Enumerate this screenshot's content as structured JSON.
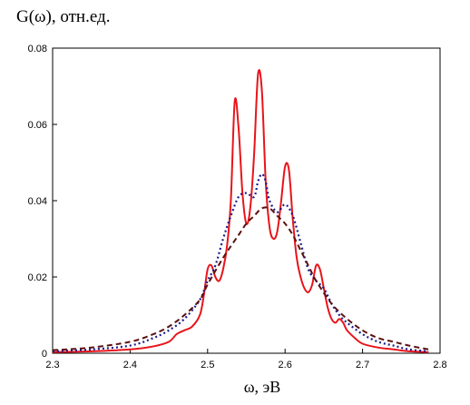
{
  "chart_data": {
    "type": "line",
    "title": "G(ω), отн.ед.",
    "xlabel": "ω, эВ",
    "ylabel": "",
    "xlim": [
      2.3,
      2.8
    ],
    "ylim": [
      0,
      0.08
    ],
    "x_ticks": [
      "2.3",
      "2.4",
      "2.5",
      "2.6",
      "2.7",
      "2.8"
    ],
    "y_ticks": [
      "0",
      "0.02",
      "0.04",
      "0.06",
      "0.08"
    ],
    "grid": false,
    "series": [
      {
        "color": "#e8141a",
        "style": "solid",
        "x": [
          2.3,
          2.35,
          2.4,
          2.43,
          2.45,
          2.46,
          2.47,
          2.48,
          2.49,
          2.495,
          2.5,
          2.505,
          2.51,
          2.515,
          2.52,
          2.525,
          2.53,
          2.535,
          2.54,
          2.545,
          2.55,
          2.555,
          2.56,
          2.565,
          2.57,
          2.575,
          2.58,
          2.585,
          2.59,
          2.595,
          2.6,
          2.605,
          2.61,
          2.615,
          2.62,
          2.625,
          2.63,
          2.635,
          2.64,
          2.645,
          2.65,
          2.655,
          2.66,
          2.665,
          2.67,
          2.675,
          2.68,
          2.69,
          2.7,
          2.72,
          2.74,
          2.76,
          2.785
        ],
        "y": [
          0.0003,
          0.0005,
          0.001,
          0.0018,
          0.003,
          0.005,
          0.006,
          0.007,
          0.01,
          0.015,
          0.022,
          0.023,
          0.02,
          0.019,
          0.022,
          0.028,
          0.04,
          0.066,
          0.059,
          0.042,
          0.034,
          0.038,
          0.052,
          0.073,
          0.069,
          0.045,
          0.033,
          0.03,
          0.032,
          0.04,
          0.049,
          0.048,
          0.035,
          0.025,
          0.02,
          0.017,
          0.016,
          0.018,
          0.023,
          0.022,
          0.017,
          0.012,
          0.009,
          0.008,
          0.009,
          0.008,
          0.006,
          0.004,
          0.0025,
          0.0015,
          0.001,
          0.0005,
          0.0003
        ]
      },
      {
        "color": "#1a1a8c",
        "style": "dotted",
        "x": [
          2.3,
          2.35,
          2.4,
          2.43,
          2.45,
          2.47,
          2.49,
          2.5,
          2.51,
          2.52,
          2.53,
          2.54,
          2.55,
          2.56,
          2.565,
          2.57,
          2.575,
          2.58,
          2.59,
          2.6,
          2.61,
          2.62,
          2.63,
          2.64,
          2.65,
          2.66,
          2.67,
          2.68,
          2.7,
          2.72,
          2.74,
          2.76,
          2.785
        ],
        "y": [
          0.0005,
          0.001,
          0.002,
          0.004,
          0.006,
          0.009,
          0.014,
          0.019,
          0.023,
          0.03,
          0.036,
          0.041,
          0.042,
          0.041,
          0.045,
          0.047,
          0.045,
          0.04,
          0.037,
          0.039,
          0.036,
          0.029,
          0.022,
          0.019,
          0.017,
          0.013,
          0.01,
          0.008,
          0.005,
          0.003,
          0.002,
          0.001,
          0.0005
        ]
      },
      {
        "color": "#5c1010",
        "style": "dashed",
        "x": [
          2.3,
          2.35,
          2.4,
          2.43,
          2.45,
          2.47,
          2.49,
          2.5,
          2.52,
          2.54,
          2.55,
          2.56,
          2.57,
          2.58,
          2.59,
          2.6,
          2.61,
          2.62,
          2.63,
          2.64,
          2.66,
          2.68,
          2.7,
          2.72,
          2.74,
          2.76,
          2.785
        ],
        "y": [
          0.0008,
          0.0015,
          0.003,
          0.005,
          0.007,
          0.01,
          0.014,
          0.018,
          0.025,
          0.031,
          0.034,
          0.036,
          0.038,
          0.038,
          0.036,
          0.034,
          0.031,
          0.027,
          0.023,
          0.019,
          0.013,
          0.009,
          0.006,
          0.004,
          0.003,
          0.002,
          0.001
        ]
      }
    ]
  }
}
